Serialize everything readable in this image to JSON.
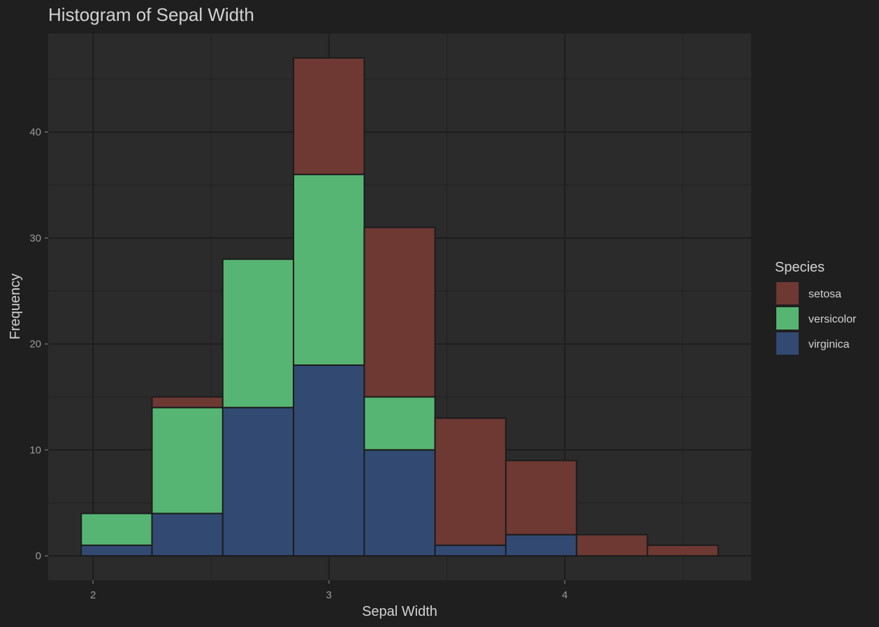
{
  "chart_data": {
    "type": "bar",
    "stacked": true,
    "title": "Histogram of Sepal Width",
    "xlabel": "Sepal Width",
    "ylabel": "Frequency",
    "xlim": [
      1.81,
      4.79
    ],
    "ylim": [
      -2.3,
      49.3
    ],
    "x_major_ticks": [
      2,
      3,
      4
    ],
    "x_tick_labels": [
      "2",
      "3",
      "4"
    ],
    "x_minor_ticks": [
      2.5,
      3.5,
      4.5
    ],
    "y_major_ticks": [
      0,
      10,
      20,
      30,
      40
    ],
    "y_tick_labels": [
      "0",
      "10",
      "20",
      "30",
      "40"
    ],
    "y_minor_ticks": [
      5,
      15,
      25,
      35,
      45
    ],
    "bin_width": 0.3,
    "bins": [
      [
        1.95,
        2.25
      ],
      [
        2.25,
        2.55
      ],
      [
        2.55,
        2.85
      ],
      [
        2.85,
        3.15
      ],
      [
        3.15,
        3.45
      ],
      [
        3.45,
        3.75
      ],
      [
        3.75,
        4.05
      ],
      [
        4.05,
        4.35
      ],
      [
        4.35,
        4.65
      ]
    ],
    "series": [
      {
        "name": "virginica",
        "color": "#324a72",
        "values": [
          1,
          4,
          14,
          18,
          10,
          1,
          2,
          0,
          0
        ]
      },
      {
        "name": "versicolor",
        "color": "#57b573",
        "values": [
          3,
          10,
          14,
          18,
          5,
          0,
          0,
          0,
          0
        ]
      },
      {
        "name": "setosa",
        "color": "#6e3833",
        "values": [
          0,
          1,
          0,
          11,
          16,
          12,
          7,
          2,
          1
        ]
      }
    ],
    "legend": {
      "title": "Species",
      "position": "right",
      "items": [
        {
          "label": "setosa",
          "color": "#6e3833"
        },
        {
          "label": "versicolor",
          "color": "#57b573"
        },
        {
          "label": "virginica",
          "color": "#324a72"
        }
      ]
    },
    "grid": true,
    "background": "#1f1f1f",
    "panel_background": "#2b2b2b"
  }
}
